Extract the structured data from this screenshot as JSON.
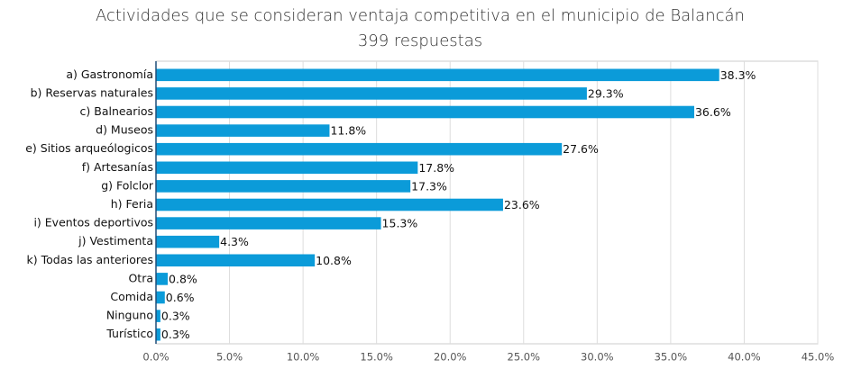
{
  "chart_data": {
    "type": "barh",
    "title": "Actividades que se consideran ventaja competitiva en el municipio de Balancán",
    "subtitle": "399 respuestas",
    "categories": [
      "a) Gastronomía",
      "b) Reservas naturales",
      "c) Balnearios",
      "d) Museos",
      "e) Sitios arqueólogicos",
      "f) Artesanías",
      "g) Folclor",
      "h) Feria",
      "i) Eventos deportivos",
      "j) Vestimenta",
      "k) Todas las anteriores",
      "Otra",
      "Comida",
      "Ninguno",
      "Turístico"
    ],
    "values": [
      38.3,
      29.3,
      36.6,
      11.8,
      27.6,
      17.8,
      17.3,
      23.6,
      15.3,
      4.3,
      10.8,
      0.8,
      0.6,
      0.3,
      0.3
    ],
    "value_labels": [
      "38.3%",
      "29.3%",
      "36.6%",
      "11.8%",
      "27.6%",
      "17.8%",
      "17.3%",
      "23.6%",
      "15.3%",
      "4.3%",
      "10.8%",
      "0.8%",
      "0.6%",
      "0.3%",
      "0.3%"
    ],
    "color": "#0b9bd9",
    "xlim": [
      0,
      45
    ],
    "xticks": [
      {
        "value": 0,
        "label": "0.0%"
      },
      {
        "value": 5,
        "label": "5.0%"
      },
      {
        "value": 10,
        "label": "10.0%"
      },
      {
        "value": 15,
        "label": "15.0%"
      },
      {
        "value": 20,
        "label": "20.0%"
      },
      {
        "value": 25,
        "label": "25.0%"
      },
      {
        "value": 30,
        "label": "30.0%"
      },
      {
        "value": 35,
        "label": "35.0%"
      },
      {
        "value": 40,
        "label": "40.0%"
      },
      {
        "value": 45,
        "label": "45.0%"
      }
    ],
    "grid": true
  }
}
